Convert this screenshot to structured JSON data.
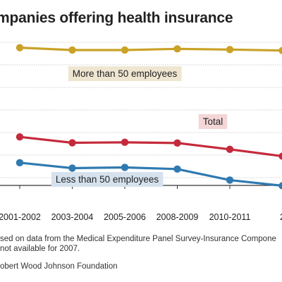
{
  "chart_data": {
    "type": "line",
    "title": "mpanies offering health insurance",
    "categories": [
      "2001-2002",
      "2003-2004",
      "2005-2006",
      "2008-2009",
      "2010-2011",
      "2"
    ],
    "ylim": [
      0,
      100
    ],
    "grid": true,
    "series": [
      {
        "name": "More than 50 employees",
        "color": "#c9a227",
        "label_bg": "#efe6d2",
        "values": [
          96.5,
          95.5,
          95.5,
          96.0,
          95.7,
          95.3
        ]
      },
      {
        "name": "Total",
        "color": "#c42a3c",
        "label_bg": "#f4d6d6",
        "values": [
          58.5,
          56.0,
          56.2,
          55.9,
          53.2,
          50.3
        ]
      },
      {
        "name": "Less than 50 employees",
        "color": "#2f7ab0",
        "label_bg": "#d5e2ee",
        "values": [
          47.5,
          45.2,
          45.5,
          44.8,
          40.1,
          37.7
        ]
      }
    ]
  },
  "notes": {
    "line1": "sed on data from the Medical Expenditure Panel Survey-Insurance Compone",
    "line2": "not available for 2007.",
    "source": "obert Wood Johnson Foundation"
  },
  "colors": {
    "grid": "#d0d0d0",
    "axis": "#333333",
    "text": "#222222"
  }
}
